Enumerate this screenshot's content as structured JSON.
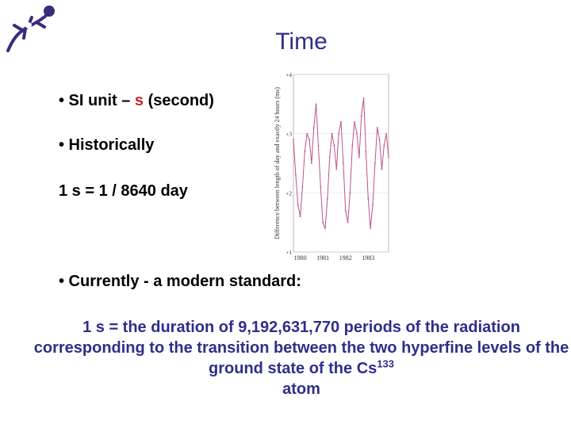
{
  "slide": {
    "title": "Time",
    "bullet1": {
      "prefix": "• SI unit –",
      "unit": "s",
      "suffix": "(second)"
    },
    "bullet2": "• Historically",
    "bullet3": "1 s = 1 / 8640 day",
    "bullet4": "• Currently -  a modern standard:",
    "definition": {
      "text": "1 s = the duration of 9,192,631,770 periods of the radiation corresponding to the transition between the two hyperfine levels of the ground state of the Cs",
      "superscript": "133",
      "tail": "atom"
    }
  },
  "colors": {
    "title": "#2e2e8a",
    "accent": "#cc2222",
    "series": "#c0508a"
  },
  "logo": {
    "icon": "lizard-logo-icon"
  },
  "chart_data": {
    "type": "line",
    "ylabel": "Difference between length of day and exactly 24 hours (ms)",
    "ylim": [
      1,
      4
    ],
    "xlim": [
      1979.7,
      1983.9
    ],
    "yticks": [
      "+1",
      "+2",
      "+3",
      "+4"
    ],
    "xticks": [
      "1980",
      "1981",
      "1982",
      "1983"
    ],
    "x": [
      1979.7,
      1979.8,
      1979.9,
      1980.0,
      1980.1,
      1980.2,
      1980.3,
      1980.4,
      1980.5,
      1980.6,
      1980.7,
      1980.8,
      1980.9,
      1981.0,
      1981.1,
      1981.2,
      1981.3,
      1981.4,
      1981.5,
      1981.6,
      1981.7,
      1981.8,
      1981.9,
      1982.0,
      1982.1,
      1982.2,
      1982.3,
      1982.4,
      1982.5,
      1982.6,
      1982.7,
      1982.8,
      1982.9,
      1983.0,
      1983.1,
      1983.2,
      1983.3,
      1983.4,
      1983.5,
      1983.6,
      1983.7,
      1983.8,
      1983.9
    ],
    "values": [
      2.9,
      2.3,
      1.8,
      1.6,
      2.1,
      2.7,
      3.0,
      2.9,
      2.5,
      3.1,
      3.5,
      2.8,
      2.1,
      1.5,
      1.4,
      1.9,
      2.6,
      3.0,
      2.8,
      2.4,
      3.0,
      3.2,
      2.5,
      1.7,
      1.5,
      2.0,
      2.8,
      3.2,
      3.0,
      2.6,
      3.3,
      3.6,
      2.7,
      1.9,
      1.4,
      1.8,
      2.5,
      3.1,
      2.9,
      2.4,
      2.8,
      3.0,
      2.6
    ]
  }
}
